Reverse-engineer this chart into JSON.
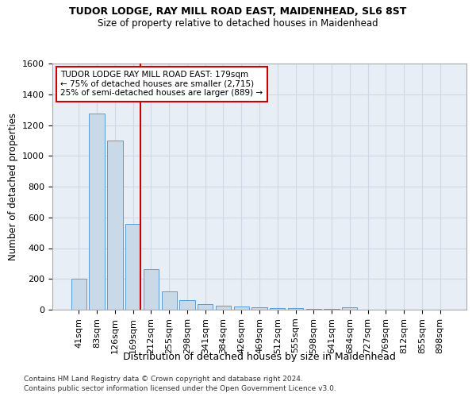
{
  "title1": "TUDOR LODGE, RAY MILL ROAD EAST, MAIDENHEAD, SL6 8ST",
  "title2": "Size of property relative to detached houses in Maidenhead",
  "xlabel": "Distribution of detached houses by size in Maidenhead",
  "ylabel": "Number of detached properties",
  "footnote1": "Contains HM Land Registry data © Crown copyright and database right 2024.",
  "footnote2": "Contains public sector information licensed under the Open Government Licence v3.0.",
  "bar_labels": [
    "41sqm",
    "83sqm",
    "126sqm",
    "169sqm",
    "212sqm",
    "255sqm",
    "298sqm",
    "341sqm",
    "384sqm",
    "426sqm",
    "469sqm",
    "512sqm",
    "555sqm",
    "598sqm",
    "641sqm",
    "684sqm",
    "727sqm",
    "769sqm",
    "812sqm",
    "855sqm",
    "898sqm"
  ],
  "bar_values": [
    200,
    1275,
    1100,
    560,
    265,
    120,
    60,
    35,
    25,
    20,
    15,
    10,
    8,
    5,
    3,
    15,
    0,
    0,
    0,
    0,
    0
  ],
  "bar_color": "#c9d9e8",
  "bar_edge_color": "#5b9bd5",
  "grid_color": "#d0d8e8",
  "background_color": "#e8eef5",
  "red_line_color": "#cc0000",
  "annotation_text": "TUDOR LODGE RAY MILL ROAD EAST: 179sqm\n← 75% of detached houses are smaller (2,715)\n25% of semi-detached houses are larger (889) →",
  "annotation_box_color": "#ffffff",
  "annotation_border_color": "#cc0000",
  "ylim": [
    0,
    1600
  ],
  "yticks": [
    0,
    200,
    400,
    600,
    800,
    1000,
    1200,
    1400,
    1600
  ]
}
